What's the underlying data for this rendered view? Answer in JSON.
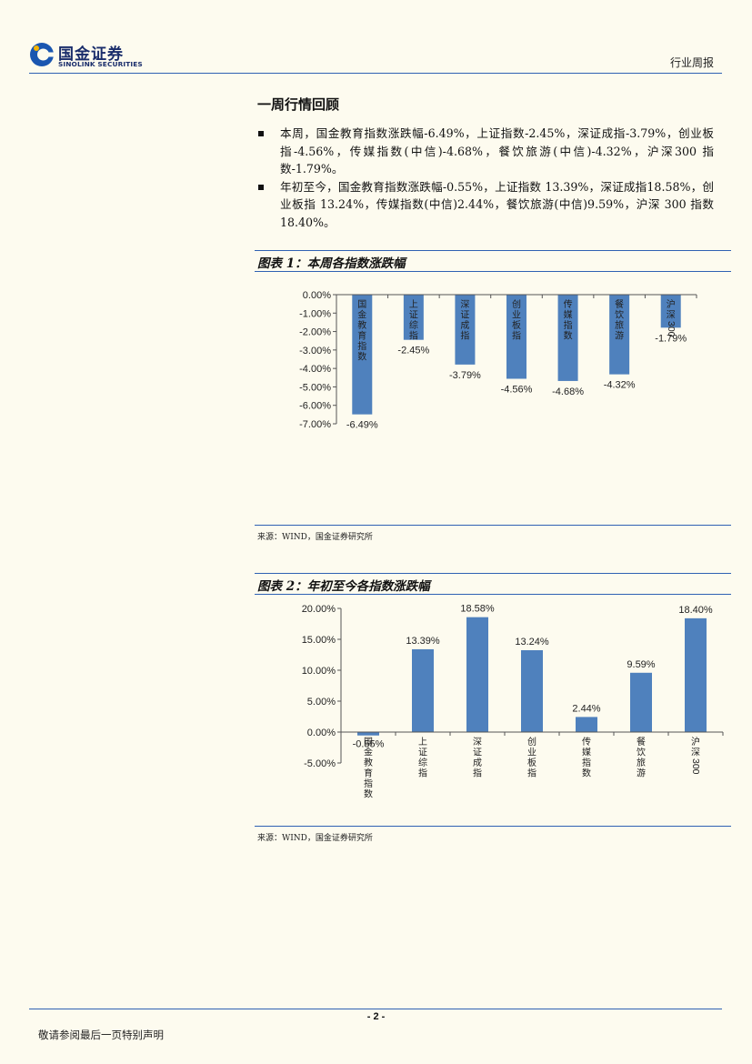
{
  "header": {
    "logo_cn": "国金证券",
    "logo_en": "SINOLINK SECURITIES",
    "doc_type": "行业周报"
  },
  "section": {
    "title": "一周行情回顾",
    "bullets": [
      "本周，国金教育指数涨跌幅-6.49%，上证指数-2.45%，深证成指-3.79%，创业板指-4.56%，传媒指数(中信)-4.68%，餐饮旅游(中信)-4.32%，沪深300 指数-1.79%。",
      "年初至今，国金教育指数涨跌幅-0.55%，上证指数 13.39%，深证成指18.58%，创业板指 13.24%，传媒指数(中信)2.44%，餐饮旅游(中信)9.59%，沪深 300 指数 18.40%。"
    ]
  },
  "figure1": {
    "title": "图表 1：本周各指数涨跌幅",
    "source": "来源：WIND，国金证券研究所"
  },
  "figure2": {
    "title": "图表 2：年初至今各指数涨跌幅",
    "source": "来源：WIND，国金证券研究所"
  },
  "chart_data": [
    {
      "type": "bar",
      "categories": [
        "国金教育指数",
        "上证综指",
        "深证成指",
        "创业板指",
        "传媒指数",
        "餐饮旅游",
        "沪深300"
      ],
      "values": [
        -6.49,
        -2.45,
        -3.79,
        -4.56,
        -4.68,
        -4.32,
        -1.79
      ],
      "labels": [
        "-6.49%",
        "-2.45%",
        "-3.79%",
        "-4.56%",
        "-4.68%",
        "-4.32%",
        "-1.79%"
      ],
      "yticks": [
        "0.00%",
        "-1.00%",
        "-2.00%",
        "-3.00%",
        "-4.00%",
        "-5.00%",
        "-6.00%",
        "-7.00%"
      ],
      "ylim": [
        -7,
        0
      ],
      "color": "#4f81bd",
      "grid": false
    },
    {
      "type": "bar",
      "categories": [
        "国金教育指数",
        "上证综指",
        "深证成指",
        "创业板指",
        "传媒指数",
        "餐饮旅游",
        "沪深300"
      ],
      "values": [
        -0.55,
        13.39,
        18.58,
        13.24,
        2.44,
        9.59,
        18.4
      ],
      "labels": [
        "-0.55%",
        "13.39%",
        "18.58%",
        "13.24%",
        "2.44%",
        "9.59%",
        "18.40%"
      ],
      "yticks": [
        "20.00%",
        "15.00%",
        "10.00%",
        "5.00%",
        "0.00%",
        "-5.00%"
      ],
      "ylim": [
        -5,
        20
      ],
      "color": "#4f81bd",
      "grid": false
    }
  ],
  "footer": {
    "page": "- 2 -",
    "note": "敬请参阅最后一页特别声明"
  }
}
